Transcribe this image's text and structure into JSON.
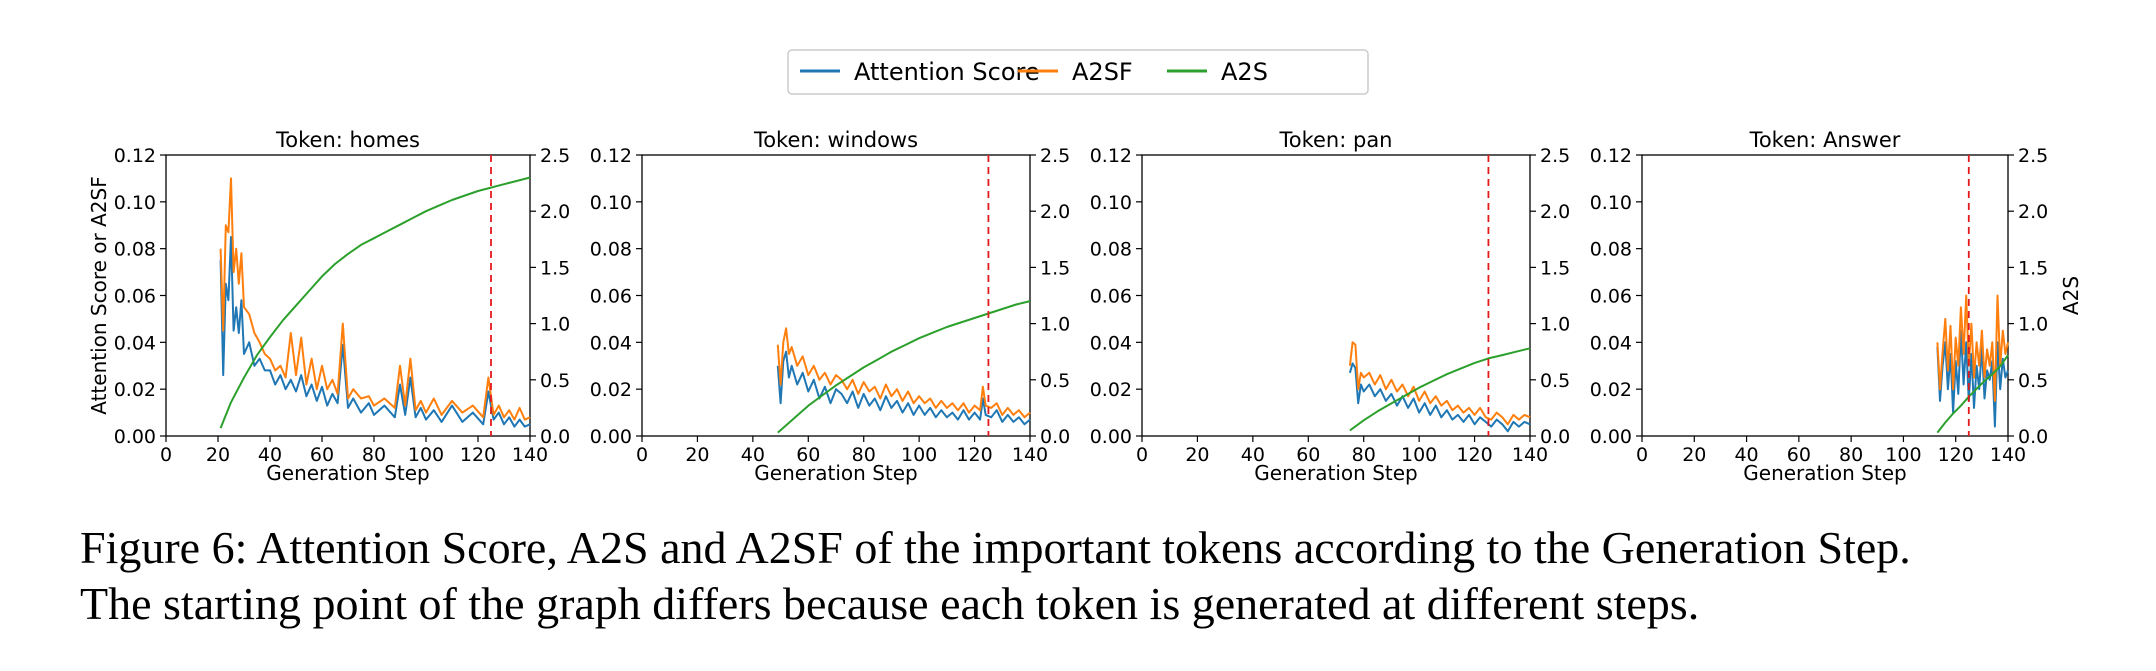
{
  "legend": {
    "entries": [
      {
        "name": "Attention Score",
        "color": "#1f77b4"
      },
      {
        "name": "A2SF",
        "color": "#ff7f0e"
      },
      {
        "name": "A2S",
        "color": "#2ca02c"
      }
    ],
    "placement": "top-center"
  },
  "caption": {
    "line1": "Figure 6: Attention Score, A2S and A2SF of the important tokens according to the Generation Step.",
    "line2": "The starting point of the graph differs because each token is generated at different steps."
  },
  "chart_data": [
    {
      "type": "line",
      "title": "Token: homes",
      "xlabel": "Generation Step",
      "ylabel": "Attention Score or A2SF",
      "y2label": "",
      "xlim": [
        0,
        140
      ],
      "ylim": [
        0,
        0.12
      ],
      "y2lim": [
        0,
        2.5
      ],
      "xticks": [
        "0",
        "20",
        "40",
        "60",
        "80",
        "100",
        "120",
        "140"
      ],
      "yticks": [
        "0.00",
        "0.02",
        "0.04",
        "0.06",
        "0.08",
        "0.10",
        "0.12"
      ],
      "y2ticks": [
        "0.0",
        "0.5",
        "1.0",
        "1.5",
        "2.0",
        "2.5"
      ],
      "vline_x": 125,
      "series": [
        {
          "name": "Attention Score",
          "axis": "left",
          "color": "#1f77b4",
          "x": [
            21,
            22,
            23,
            24,
            25,
            26,
            27,
            28,
            29,
            30,
            32,
            34,
            36,
            38,
            40,
            42,
            44,
            46,
            48,
            50,
            52,
            54,
            56,
            58,
            60,
            62,
            64,
            66,
            68,
            70,
            72,
            75,
            78,
            80,
            84,
            88,
            90,
            92,
            94,
            96,
            98,
            100,
            103,
            106,
            110,
            114,
            118,
            122,
            124,
            126,
            128,
            130,
            132,
            134,
            136,
            138,
            140
          ],
          "y": [
            0.075,
            0.026,
            0.065,
            0.058,
            0.085,
            0.045,
            0.055,
            0.044,
            0.058,
            0.035,
            0.04,
            0.03,
            0.033,
            0.028,
            0.028,
            0.022,
            0.026,
            0.02,
            0.024,
            0.019,
            0.026,
            0.017,
            0.022,
            0.015,
            0.021,
            0.013,
            0.018,
            0.014,
            0.039,
            0.012,
            0.016,
            0.01,
            0.014,
            0.009,
            0.013,
            0.008,
            0.022,
            0.009,
            0.025,
            0.008,
            0.012,
            0.007,
            0.011,
            0.006,
            0.013,
            0.006,
            0.01,
            0.005,
            0.019,
            0.007,
            0.01,
            0.005,
            0.008,
            0.004,
            0.007,
            0.004,
            0.005
          ]
        },
        {
          "name": "A2SF",
          "axis": "left",
          "color": "#ff7f0e",
          "x": [
            21,
            22,
            23,
            24,
            25,
            26,
            27,
            28,
            29,
            30,
            32,
            34,
            36,
            38,
            40,
            42,
            44,
            46,
            48,
            50,
            52,
            54,
            56,
            58,
            60,
            62,
            64,
            66,
            68,
            70,
            72,
            75,
            78,
            80,
            84,
            88,
            90,
            92,
            94,
            96,
            98,
            100,
            103,
            106,
            110,
            114,
            118,
            122,
            124,
            126,
            128,
            130,
            132,
            134,
            136,
            138,
            140
          ],
          "y": [
            0.08,
            0.045,
            0.09,
            0.087,
            0.11,
            0.07,
            0.08,
            0.065,
            0.078,
            0.055,
            0.052,
            0.044,
            0.04,
            0.035,
            0.033,
            0.028,
            0.03,
            0.025,
            0.044,
            0.026,
            0.042,
            0.022,
            0.033,
            0.02,
            0.03,
            0.02,
            0.024,
            0.018,
            0.048,
            0.016,
            0.02,
            0.016,
            0.017,
            0.013,
            0.016,
            0.012,
            0.03,
            0.013,
            0.033,
            0.011,
            0.015,
            0.01,
            0.016,
            0.009,
            0.015,
            0.01,
            0.013,
            0.008,
            0.025,
            0.009,
            0.013,
            0.008,
            0.011,
            0.007,
            0.012,
            0.007,
            0.008
          ]
        },
        {
          "name": "A2S",
          "axis": "right",
          "color": "#2ca02c",
          "x": [
            21,
            25,
            30,
            35,
            40,
            45,
            50,
            55,
            60,
            65,
            70,
            75,
            80,
            85,
            90,
            95,
            100,
            105,
            110,
            115,
            120,
            125,
            130,
            135,
            140
          ],
          "y": [
            0.07,
            0.3,
            0.52,
            0.72,
            0.88,
            1.03,
            1.16,
            1.29,
            1.42,
            1.53,
            1.62,
            1.7,
            1.76,
            1.82,
            1.88,
            1.94,
            2.0,
            2.05,
            2.1,
            2.14,
            2.18,
            2.21,
            2.24,
            2.27,
            2.3
          ]
        }
      ]
    },
    {
      "type": "line",
      "title": "Token: windows",
      "xlabel": "Generation Step",
      "ylabel": "",
      "y2label": "",
      "xlim": [
        0,
        140
      ],
      "ylim": [
        0,
        0.12
      ],
      "y2lim": [
        0,
        2.5
      ],
      "xticks": [
        "0",
        "20",
        "40",
        "60",
        "80",
        "100",
        "120",
        "140"
      ],
      "yticks": [
        "0.00",
        "0.02",
        "0.04",
        "0.06",
        "0.08",
        "0.10",
        "0.12"
      ],
      "y2ticks": [
        "0.0",
        "0.5",
        "1.0",
        "1.5",
        "2.0",
        "2.5"
      ],
      "vline_x": 125,
      "series": [
        {
          "name": "Attention Score",
          "axis": "left",
          "color": "#1f77b4",
          "x": [
            49,
            50,
            51,
            52,
            53,
            54,
            56,
            58,
            60,
            62,
            64,
            66,
            68,
            70,
            72,
            74,
            76,
            78,
            80,
            82,
            84,
            86,
            88,
            90,
            92,
            94,
            96,
            98,
            100,
            102,
            104,
            106,
            108,
            110,
            112,
            114,
            116,
            118,
            120,
            122,
            123,
            124,
            126,
            128,
            130,
            132,
            134,
            136,
            138,
            140
          ],
          "y": [
            0.03,
            0.014,
            0.032,
            0.036,
            0.025,
            0.03,
            0.022,
            0.027,
            0.019,
            0.024,
            0.016,
            0.021,
            0.014,
            0.02,
            0.018,
            0.014,
            0.019,
            0.012,
            0.018,
            0.013,
            0.016,
            0.011,
            0.017,
            0.012,
            0.015,
            0.01,
            0.014,
            0.009,
            0.013,
            0.009,
            0.012,
            0.008,
            0.011,
            0.008,
            0.01,
            0.007,
            0.011,
            0.007,
            0.01,
            0.007,
            0.016,
            0.009,
            0.008,
            0.011,
            0.006,
            0.009,
            0.006,
            0.008,
            0.005,
            0.007
          ]
        },
        {
          "name": "A2SF",
          "axis": "left",
          "color": "#ff7f0e",
          "x": [
            49,
            50,
            51,
            52,
            53,
            54,
            56,
            58,
            60,
            62,
            64,
            66,
            68,
            70,
            72,
            74,
            76,
            78,
            80,
            82,
            84,
            86,
            88,
            90,
            92,
            94,
            96,
            98,
            100,
            102,
            104,
            106,
            108,
            110,
            112,
            114,
            116,
            118,
            120,
            122,
            123,
            124,
            126,
            128,
            130,
            132,
            134,
            136,
            138,
            140
          ],
          "y": [
            0.039,
            0.022,
            0.04,
            0.046,
            0.035,
            0.038,
            0.03,
            0.034,
            0.026,
            0.03,
            0.024,
            0.027,
            0.022,
            0.026,
            0.024,
            0.02,
            0.024,
            0.018,
            0.023,
            0.019,
            0.021,
            0.016,
            0.022,
            0.017,
            0.02,
            0.015,
            0.019,
            0.014,
            0.017,
            0.014,
            0.016,
            0.012,
            0.015,
            0.012,
            0.014,
            0.011,
            0.014,
            0.01,
            0.013,
            0.011,
            0.021,
            0.013,
            0.012,
            0.014,
            0.009,
            0.012,
            0.009,
            0.011,
            0.008,
            0.01
          ]
        },
        {
          "name": "A2S",
          "axis": "right",
          "color": "#2ca02c",
          "x": [
            49,
            55,
            60,
            65,
            70,
            75,
            80,
            85,
            90,
            95,
            100,
            105,
            110,
            115,
            120,
            125,
            130,
            135,
            140
          ],
          "y": [
            0.03,
            0.16,
            0.27,
            0.36,
            0.45,
            0.53,
            0.61,
            0.68,
            0.75,
            0.81,
            0.87,
            0.92,
            0.97,
            1.01,
            1.05,
            1.09,
            1.13,
            1.17,
            1.2
          ]
        }
      ]
    },
    {
      "type": "line",
      "title": "Token: pan",
      "xlabel": "Generation Step",
      "ylabel": "",
      "y2label": "",
      "xlim": [
        0,
        140
      ],
      "ylim": [
        0,
        0.12
      ],
      "y2lim": [
        0,
        2.5
      ],
      "xticks": [
        "0",
        "20",
        "40",
        "60",
        "80",
        "100",
        "120",
        "140"
      ],
      "yticks": [
        "0.00",
        "0.02",
        "0.04",
        "0.06",
        "0.08",
        "0.10",
        "0.12"
      ],
      "y2ticks": [
        "0.0",
        "0.5",
        "1.0",
        "1.5",
        "2.0",
        "2.5"
      ],
      "vline_x": 125,
      "series": [
        {
          "name": "Attention Score",
          "axis": "left",
          "color": "#1f77b4",
          "x": [
            75,
            76,
            77,
            78,
            79,
            80,
            82,
            84,
            86,
            88,
            90,
            92,
            94,
            96,
            98,
            100,
            102,
            104,
            106,
            108,
            110,
            112,
            114,
            116,
            118,
            120,
            122,
            124,
            126,
            128,
            130,
            132,
            134,
            136,
            138,
            140
          ],
          "y": [
            0.027,
            0.031,
            0.029,
            0.014,
            0.022,
            0.019,
            0.022,
            0.017,
            0.02,
            0.015,
            0.018,
            0.013,
            0.017,
            0.012,
            0.016,
            0.01,
            0.014,
            0.009,
            0.013,
            0.008,
            0.011,
            0.007,
            0.009,
            0.006,
            0.009,
            0.005,
            0.008,
            0.006,
            0.004,
            0.007,
            0.005,
            0.002,
            0.006,
            0.004,
            0.006,
            0.005
          ]
        },
        {
          "name": "A2SF",
          "axis": "left",
          "color": "#ff7f0e",
          "x": [
            75,
            76,
            77,
            78,
            79,
            80,
            82,
            84,
            86,
            88,
            90,
            92,
            94,
            96,
            98,
            100,
            102,
            104,
            106,
            108,
            110,
            112,
            114,
            116,
            118,
            120,
            122,
            124,
            126,
            128,
            130,
            132,
            134,
            136,
            138,
            140
          ],
          "y": [
            0.03,
            0.04,
            0.039,
            0.02,
            0.027,
            0.025,
            0.027,
            0.022,
            0.026,
            0.02,
            0.024,
            0.019,
            0.022,
            0.017,
            0.021,
            0.015,
            0.019,
            0.014,
            0.017,
            0.013,
            0.015,
            0.011,
            0.013,
            0.01,
            0.012,
            0.009,
            0.012,
            0.008,
            0.007,
            0.01,
            0.008,
            0.005,
            0.009,
            0.007,
            0.009,
            0.008
          ]
        },
        {
          "name": "A2S",
          "axis": "right",
          "color": "#2ca02c",
          "x": [
            75,
            80,
            85,
            90,
            95,
            100,
            105,
            110,
            115,
            120,
            125,
            130,
            135,
            140
          ],
          "y": [
            0.05,
            0.14,
            0.22,
            0.29,
            0.36,
            0.43,
            0.49,
            0.55,
            0.6,
            0.65,
            0.69,
            0.72,
            0.75,
            0.78
          ]
        }
      ]
    },
    {
      "type": "line",
      "title": "Token: Answer",
      "xlabel": "Generation Step",
      "ylabel": "",
      "y2label": "A2S",
      "xlim": [
        0,
        140
      ],
      "ylim": [
        0,
        0.12
      ],
      "y2lim": [
        0,
        2.5
      ],
      "xticks": [
        "0",
        "20",
        "40",
        "60",
        "80",
        "100",
        "120",
        "140"
      ],
      "yticks": [
        "0.00",
        "0.02",
        "0.04",
        "0.06",
        "0.08",
        "0.10",
        "0.12"
      ],
      "y2ticks": [
        "0.0",
        "0.5",
        "1.0",
        "1.5",
        "2.0",
        "2.5"
      ],
      "vline_x": 125,
      "series": [
        {
          "name": "Attention Score",
          "axis": "left",
          "color": "#1f77b4",
          "x": [
            113,
            114,
            115,
            116,
            117,
            118,
            119,
            120,
            121,
            122,
            123,
            124,
            125,
            126,
            127,
            128,
            129,
            130,
            131,
            132,
            133,
            134,
            135,
            136,
            137,
            138,
            139,
            140
          ],
          "y": [
            0.038,
            0.015,
            0.03,
            0.04,
            0.02,
            0.035,
            0.01,
            0.032,
            0.018,
            0.045,
            0.022,
            0.04,
            0.015,
            0.035,
            0.012,
            0.03,
            0.02,
            0.038,
            0.016,
            0.028,
            0.024,
            0.032,
            0.004,
            0.04,
            0.02,
            0.033,
            0.025,
            0.028
          ]
        },
        {
          "name": "A2SF",
          "axis": "left",
          "color": "#ff7f0e",
          "x": [
            113,
            114,
            115,
            116,
            117,
            118,
            119,
            120,
            121,
            122,
            123,
            124,
            125,
            126,
            127,
            128,
            129,
            130,
            131,
            132,
            133,
            134,
            135,
            136,
            137,
            138,
            139,
            140
          ],
          "y": [
            0.04,
            0.02,
            0.036,
            0.05,
            0.028,
            0.047,
            0.02,
            0.042,
            0.03,
            0.055,
            0.035,
            0.06,
            0.03,
            0.048,
            0.025,
            0.04,
            0.03,
            0.045,
            0.025,
            0.037,
            0.03,
            0.04,
            0.015,
            0.06,
            0.03,
            0.045,
            0.035,
            0.04
          ]
        },
        {
          "name": "A2S",
          "axis": "right",
          "color": "#2ca02c",
          "x": [
            113,
            116,
            119,
            122,
            125,
            128,
            131,
            134,
            137,
            140
          ],
          "y": [
            0.03,
            0.12,
            0.2,
            0.27,
            0.35,
            0.42,
            0.49,
            0.55,
            0.62,
            0.72
          ]
        }
      ]
    }
  ]
}
